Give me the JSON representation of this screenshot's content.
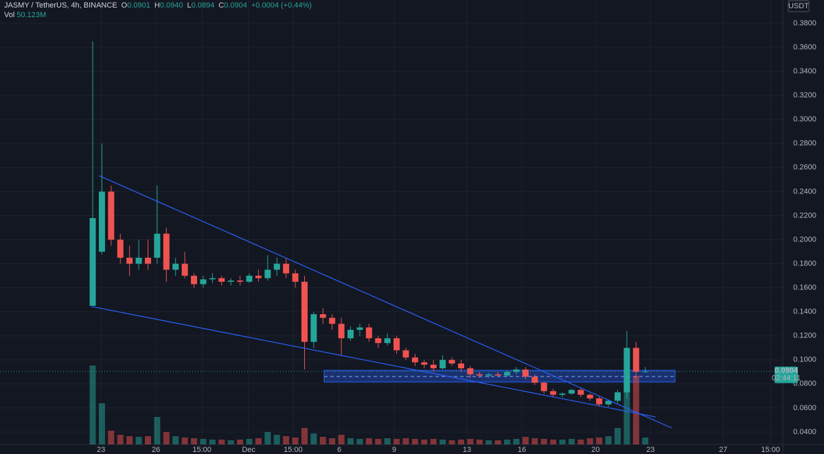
{
  "header": {
    "symbol": "JASMY / TetherUS, 4h, BINANCE",
    "ohlc": [
      {
        "key": "O",
        "value": "0.0901"
      },
      {
        "key": "H",
        "value": "0.0940"
      },
      {
        "key": "L",
        "value": "0.0894"
      },
      {
        "key": "C",
        "value": "0.0904"
      }
    ],
    "change": "+0.0004 (+0.44%)",
    "volume_label": "Vol",
    "volume_value": "50.123M",
    "currency": "USDT"
  },
  "chart_data": {
    "type": "candlestick",
    "x": [
      0,
      3,
      6,
      9,
      12,
      15,
      18,
      21,
      24,
      27,
      30,
      33,
      36,
      39,
      42,
      45,
      48,
      51,
      54,
      57,
      60,
      63,
      66,
      69,
      72,
      75,
      78,
      81,
      84,
      87,
      90,
      93,
      96,
      99,
      102,
      105,
      108,
      111,
      114,
      117,
      120,
      123,
      126,
      129,
      132,
      135,
      138,
      141,
      144,
      147,
      150,
      153,
      156,
      159,
      162,
      165,
      168,
      171,
      174,
      177,
      180
    ],
    "open": [
      0.145,
      0.19,
      0.24,
      0.2,
      0.185,
      0.18,
      0.185,
      0.185,
      0.205,
      0.175,
      0.18,
      0.17,
      0.163,
      0.167,
      0.168,
      0.165,
      0.166,
      0.165,
      0.17,
      0.168,
      0.175,
      0.18,
      0.172,
      0.165,
      0.115,
      0.138,
      0.135,
      0.13,
      0.118,
      0.125,
      0.127,
      0.118,
      0.114,
      0.118,
      0.108,
      0.102,
      0.098,
      0.096,
      0.093,
      0.1,
      0.097,
      0.093,
      0.088,
      0.087,
      0.088,
      0.087,
      0.09,
      0.092,
      0.086,
      0.081,
      0.074,
      0.071,
      0.072,
      0.075,
      0.071,
      0.068,
      0.063,
      0.066,
      0.073,
      0.11,
      0.0901
    ],
    "high": [
      0.365,
      0.28,
      0.245,
      0.205,
      0.195,
      0.2,
      0.2,
      0.245,
      0.21,
      0.185,
      0.19,
      0.172,
      0.17,
      0.172,
      0.17,
      0.168,
      0.17,
      0.172,
      0.175,
      0.187,
      0.185,
      0.185,
      0.175,
      0.17,
      0.14,
      0.143,
      0.138,
      0.135,
      0.128,
      0.13,
      0.13,
      0.12,
      0.122,
      0.12,
      0.11,
      0.105,
      0.1,
      0.1,
      0.104,
      0.102,
      0.1,
      0.095,
      0.09,
      0.089,
      0.09,
      0.091,
      0.094,
      0.094,
      0.088,
      0.082,
      0.076,
      0.073,
      0.076,
      0.077,
      0.072,
      0.07,
      0.067,
      0.075,
      0.124,
      0.115,
      0.094
    ],
    "low": [
      0.145,
      0.188,
      0.195,
      0.18,
      0.17,
      0.175,
      0.175,
      0.18,
      0.165,
      0.17,
      0.168,
      0.16,
      0.16,
      0.164,
      0.162,
      0.162,
      0.162,
      0.164,
      0.165,
      0.166,
      0.17,
      0.168,
      0.16,
      0.092,
      0.11,
      0.13,
      0.125,
      0.104,
      0.116,
      0.12,
      0.115,
      0.11,
      0.112,
      0.105,
      0.1,
      0.095,
      0.093,
      0.09,
      0.092,
      0.095,
      0.09,
      0.085,
      0.085,
      0.085,
      0.086,
      0.086,
      0.088,
      0.084,
      0.079,
      0.072,
      0.069,
      0.069,
      0.071,
      0.069,
      0.066,
      0.061,
      0.061,
      0.064,
      0.068,
      0.085,
      0.0894
    ],
    "close": [
      0.218,
      0.24,
      0.2,
      0.185,
      0.18,
      0.185,
      0.18,
      0.205,
      0.175,
      0.18,
      0.17,
      0.163,
      0.167,
      0.168,
      0.165,
      0.166,
      0.165,
      0.17,
      0.168,
      0.175,
      0.18,
      0.172,
      0.165,
      0.115,
      0.138,
      0.135,
      0.13,
      0.118,
      0.125,
      0.127,
      0.118,
      0.114,
      0.118,
      0.108,
      0.102,
      0.098,
      0.096,
      0.093,
      0.1,
      0.097,
      0.093,
      0.088,
      0.087,
      0.088,
      0.087,
      0.09,
      0.092,
      0.086,
      0.081,
      0.074,
      0.071,
      0.072,
      0.075,
      0.071,
      0.068,
      0.063,
      0.066,
      0.073,
      0.11,
      0.09,
      0.0904
    ],
    "volume": [
      575,
      300,
      100,
      70,
      60,
      55,
      60,
      200,
      90,
      60,
      50,
      45,
      40,
      35,
      35,
      30,
      35,
      40,
      45,
      90,
      70,
      60,
      50,
      120,
      80,
      55,
      45,
      70,
      45,
      40,
      45,
      40,
      45,
      40,
      45,
      40,
      35,
      40,
      35,
      30,
      35,
      40,
      35,
      30,
      30,
      35,
      40,
      55,
      45,
      40,
      35,
      35,
      40,
      35,
      45,
      50,
      60,
      120,
      550,
      500,
      50
    ],
    "up_color": "#26a69a",
    "down_color": "#ef5350",
    "xlim": [
      -30.2,
      224.8
    ],
    "xticks": [
      {
        "value": 2.7,
        "label": "23"
      },
      {
        "value": 20.6,
        "label": "26"
      },
      {
        "value": 35.6,
        "label": "15:00"
      },
      {
        "value": 50.8,
        "label": "Dec"
      },
      {
        "value": 65.3,
        "label": "15:00"
      },
      {
        "value": 80.3,
        "label": "6"
      },
      {
        "value": 98.2,
        "label": "9"
      },
      {
        "value": 121.9,
        "label": "13"
      },
      {
        "value": 139.8,
        "label": "16"
      },
      {
        "value": 163.8,
        "label": "20"
      },
      {
        "value": 181.7,
        "label": "23"
      },
      {
        "value": 205.4,
        "label": "27"
      },
      {
        "value": 220.8,
        "label": "15:00"
      }
    ],
    "ylim": [
      0.0297,
      0.3994
    ],
    "yticks": [
      {
        "value": 0.04,
        "label": "0.0400"
      },
      {
        "value": 0.06,
        "label": "0.0600"
      },
      {
        "value": 0.08,
        "label": "0.0800"
      },
      {
        "value": 0.1,
        "label": "0.1000"
      },
      {
        "value": 0.12,
        "label": "0.1200"
      },
      {
        "value": 0.14,
        "label": "0.1400"
      },
      {
        "value": 0.16,
        "label": "0.1600"
      },
      {
        "value": 0.18,
        "label": "0.1800"
      },
      {
        "value": 0.2,
        "label": "0.2000"
      },
      {
        "value": 0.22,
        "label": "0.2200"
      },
      {
        "value": 0.24,
        "label": "0.2400"
      },
      {
        "value": 0.26,
        "label": "0.2600"
      },
      {
        "value": 0.28,
        "label": "0.2800"
      },
      {
        "value": 0.3,
        "label": "0.3000"
      },
      {
        "value": 0.32,
        "label": "0.3200"
      },
      {
        "value": 0.34,
        "label": "0.3400"
      },
      {
        "value": 0.36,
        "label": "0.3600"
      },
      {
        "value": 0.38,
        "label": "0.3800"
      }
    ],
    "grid": true,
    "last_price": 0.0904,
    "countdown": "02:44:11",
    "trendlines": [
      {
        "x": [
          2.0,
          188.6
        ],
        "y": [
          0.2533,
          0.0434
        ]
      },
      {
        "x": [
          -0.45,
          183.4
        ],
        "y": [
          0.1444,
          0.0525
        ]
      }
    ],
    "zone": {
      "x": [
        75.4,
        189.7
      ],
      "y": [
        0.0816,
        0.0913
      ],
      "mid": 0.0862
    },
    "drawing_color": "#2962ff"
  }
}
